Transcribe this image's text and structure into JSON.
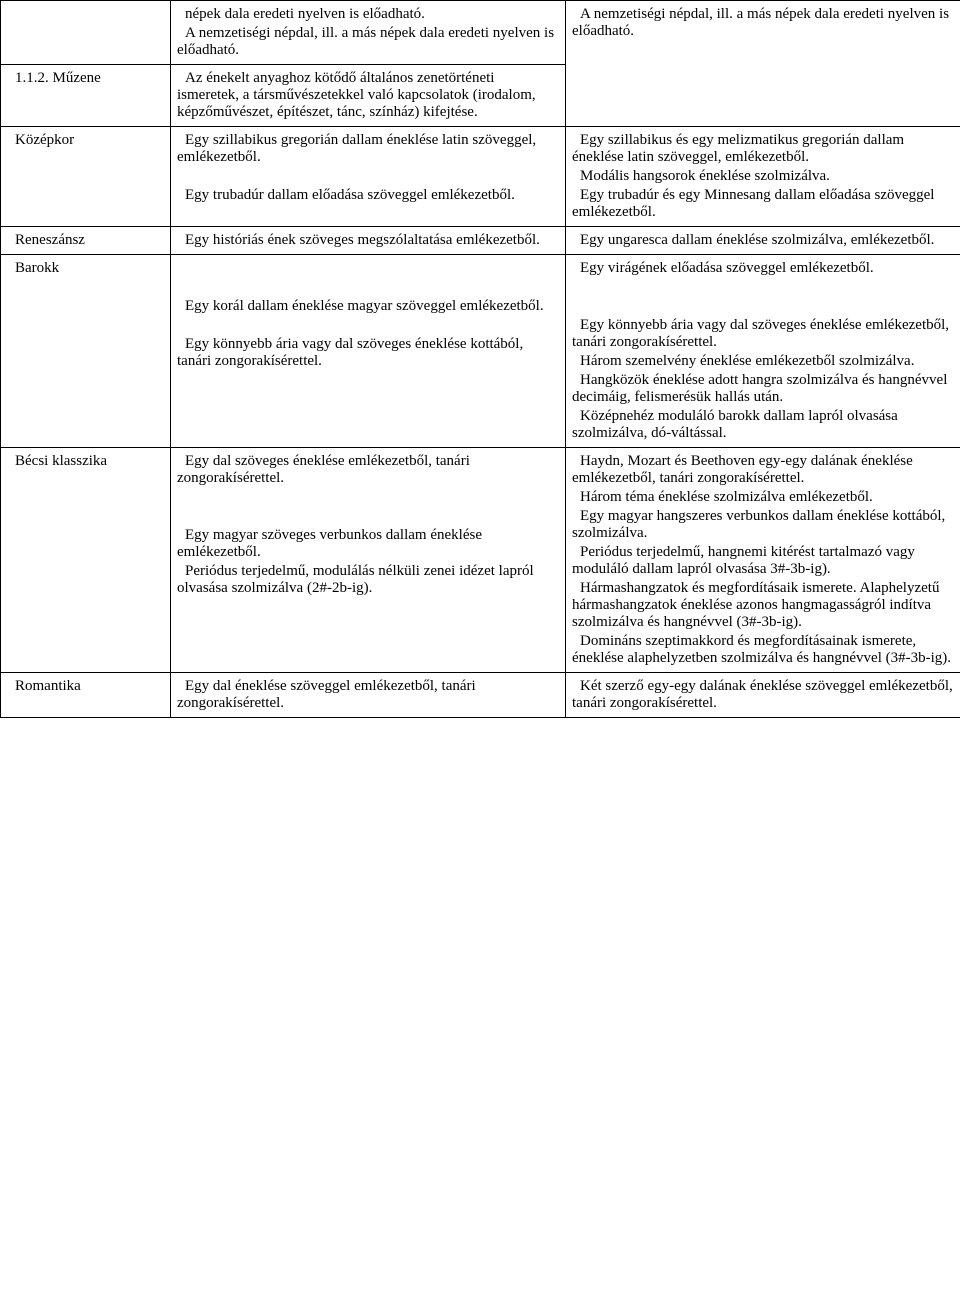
{
  "rows": [
    {
      "col1": "",
      "col2": [
        "népek dala eredeti nyelven is előadható.",
        "A nemzetiségi népdal, ill. a más népek dala eredeti nyelven is előadható."
      ],
      "col3": [
        "A nemzetiségi népdal, ill. a más népek dala eredeti nyelven is előadható."
      ],
      "col3_rowspan": 2
    },
    {
      "col1": "1.1.2. Műzene",
      "col2": [
        "Az énekelt anyaghoz kötődő általános zenetörténeti ismeretek, a társművészetekkel való kapcsolatok (irodalom, képzőművészet, építészet, tánc, színház) kifejtése."
      ]
    },
    {
      "col1": "Középkor",
      "col2": [
        "Egy szillabikus gregorián dallam éneklése latin szöveggel, emlékezetből.",
        "Egy trubadúr dallam előadása szöveggel emlékezetből."
      ],
      "col3": [
        "Egy szillabikus és egy melizmatikus gregorián dallam éneklése latin szöveggel, emlékezetből.",
        "Modális hangsorok éneklése szolmizálva.",
        "Egy trubadúr és egy Minnesang dallam előadása szöveggel emlékezetből."
      ]
    },
    {
      "col1": "Reneszánsz",
      "col2": [
        "Egy históriás ének szöveges megszólaltatása emlékezetből."
      ],
      "col3": [
        "Egy ungaresca dallam éneklése szolmizálva, emlékezetből."
      ]
    },
    {
      "col1": "Barokk",
      "col2": [
        "",
        "Egy korál dallam éneklése magyar szöveggel emlékezetből.",
        "Egy könnyebb ária vagy dal szöveges éneklése kottából, tanári zongorakísérettel."
      ],
      "col3": [
        "Egy virágének előadása szöveggel emlékezetből.",
        "",
        "Egy könnyebb ária vagy dal szöveges éneklése emlékezetből, tanári zongorakísérettel.",
        "Három szemelvény éneklése emlékezetből szolmizálva.",
        "Hangközök éneklése adott hangra szolmizálva és hangnévvel decimáig, felismerésük hallás után.",
        "Középnehéz moduláló barokk dallam lapról olvasása szolmizálva, dó-váltással."
      ]
    },
    {
      "col1": "Bécsi klasszika",
      "col2": [
        "Egy dal szöveges éneklése emlékezetből, tanári zongorakísérettel.",
        "",
        "Egy magyar szöveges verbunkos dallam éneklése emlékezetből.",
        "Periódus terjedelmű, modulálás nélküli zenei idézet lapról olvasása szolmizálva (2#-2b-ig)."
      ],
      "col3": [
        "Haydn, Mozart és Beethoven egy-egy dalának éneklése emlékezetből, tanári zongorakísérettel.",
        "Három téma éneklése szolmizálva emlékezetből.",
        "Egy magyar hangszeres verbunkos dallam éneklése kottából, szolmizálva.",
        "Periódus terjedelmű, hangnemi kitérést tartalmazó vagy moduláló dallam lapról olvasása 3#-3b-ig).",
        "Hármashangzatok és megfordításaik ismerete. Alaphelyzetű hármashangzatok éneklése azonos hangmagasságról indítva szolmizálva és hangnévvel (3#-3b-ig).",
        "Domináns szeptimakkord és megfordításainak ismerete, éneklése alaphelyzetben szolmizálva és hangnévvel (3#-3b-ig)."
      ]
    },
    {
      "col1": "Romantika",
      "col2": [
        "Egy dal éneklése szöveggel emlékezetből, tanári zongorakísérettel."
      ],
      "col3": [
        "Két szerző egy-egy dalának éneklése szöveggel emlékezetből, tanári zongorakísérettel."
      ]
    }
  ]
}
